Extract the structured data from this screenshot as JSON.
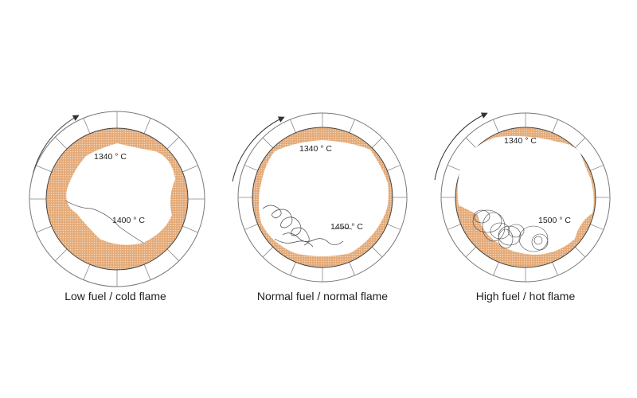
{
  "colors": {
    "coating": "#e3a977",
    "coating_dot": "#f6d9bd",
    "outline": "#555555"
  },
  "panels": [
    {
      "caption": "Low fuel / cold flame",
      "temp_top": "1340 ° C",
      "temp_flame": "1400 ° C"
    },
    {
      "caption": "Normal fuel / normal flame",
      "temp_top": "1340 ° C",
      "temp_flame": "1450 ° C"
    },
    {
      "caption": "High fuel / hot flame",
      "temp_top": "1340 ° C",
      "temp_flame": "1500 ° C"
    }
  ]
}
